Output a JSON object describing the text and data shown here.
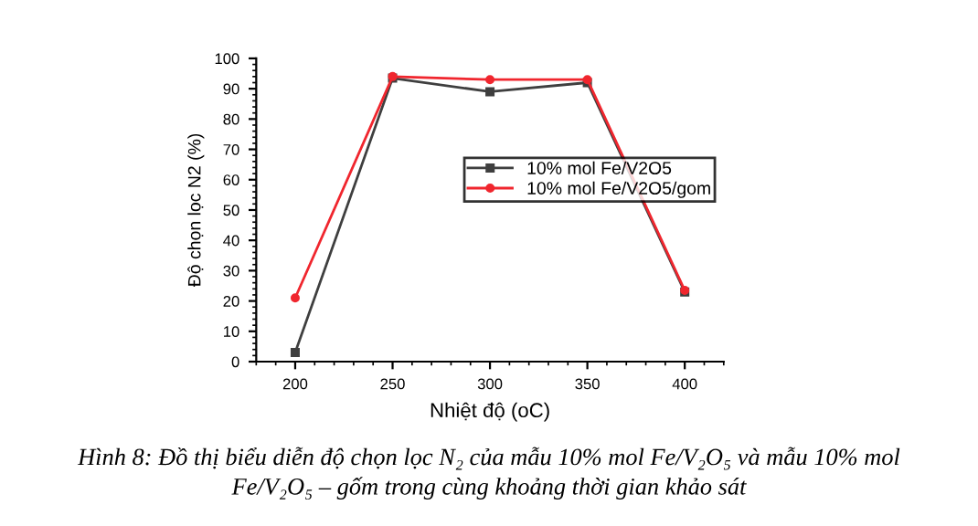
{
  "chart_data": {
    "type": "line",
    "xlabel": "Nhiệt độ (oC)",
    "ylabel": "Độ chọn lọc N2 (%)",
    "x": [
      200,
      250,
      300,
      350,
      400
    ],
    "series": [
      {
        "name": "10% mol Fe/V2O5",
        "color": "#3f3f3f",
        "marker": "square",
        "values": [
          3,
          93.5,
          89,
          92,
          23
        ]
      },
      {
        "name": "10% mol Fe/V2O5/gom",
        "color": "#f0262e",
        "marker": "circle",
        "values": [
          21,
          94,
          93,
          93,
          23.5
        ]
      }
    ],
    "xlim": [
      180,
      420
    ],
    "xticks": [
      200,
      250,
      300,
      350,
      400
    ],
    "ylim": [
      0,
      100
    ],
    "yticks": [
      0,
      10,
      20,
      30,
      40,
      50,
      60,
      70,
      80,
      90,
      100
    ],
    "grid": false,
    "legend": "right",
    "line_style": "solid",
    "annotations": [
      "Hình 8: Đồ thị biểu diễn độ chọn lọc N₂ của mẫu 10% mol Fe/V₂O₅ và mẫu 10% mol\nFe/V₂O₅ – gốm trong cùng khoảng thời gian khảo sát"
    ]
  }
}
